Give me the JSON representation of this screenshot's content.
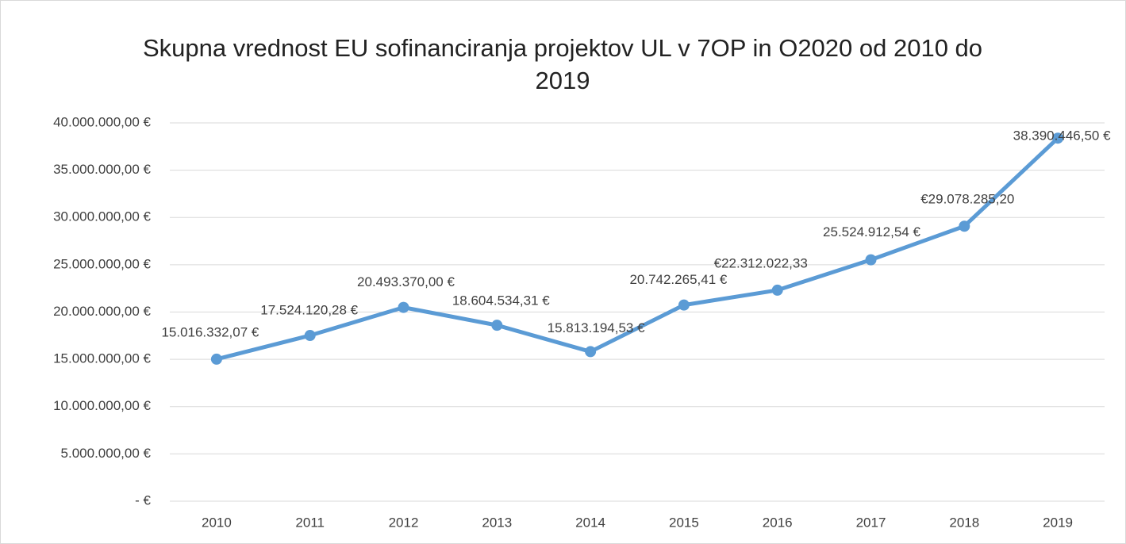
{
  "chart_data": {
    "type": "line",
    "title": "Skupna vrednost EU sofinanciranja projektov UL v 7OP in O2020 od 2010 do 2019",
    "categories": [
      "2010",
      "2011",
      "2012",
      "2013",
      "2014",
      "2015",
      "2016",
      "2017",
      "2018",
      "2019"
    ],
    "series": [
      {
        "name": "Skupna vrednost",
        "color": "#5b9bd5",
        "values": [
          15016332.07,
          17524120.28,
          20493370.0,
          18604534.31,
          15813194.53,
          20742265.41,
          22312022.33,
          25524912.54,
          29078285.2,
          38390446.5
        ],
        "value_labels": [
          "15.016.332,07 €",
          "17.524.120,28 €",
          "20.493.370,00 €",
          "18.604.534,31 €",
          "15.813.194,53 €",
          "20.742.265,41 €",
          "€22.312.022,33",
          "25.524.912,54 €",
          "€29.078.285,20",
          "38.390.446,50 €"
        ]
      }
    ],
    "ylim": [
      0,
      40000000
    ],
    "yticks": [
      {
        "value": 0,
        "label": "-  €"
      },
      {
        "value": 5000000,
        "label": "5.000.000,00 €"
      },
      {
        "value": 10000000,
        "label": "10.000.000,00 €"
      },
      {
        "value": 15000000,
        "label": "15.000.000,00 €"
      },
      {
        "value": 20000000,
        "label": "20.000.000,00 €"
      },
      {
        "value": 25000000,
        "label": "25.000.000,00 €"
      },
      {
        "value": 30000000,
        "label": "30.000.000,00 €"
      },
      {
        "value": 35000000,
        "label": "35.000.000,00 €"
      },
      {
        "value": 40000000,
        "label": "40.000.000,00 €"
      }
    ],
    "grid": true
  }
}
